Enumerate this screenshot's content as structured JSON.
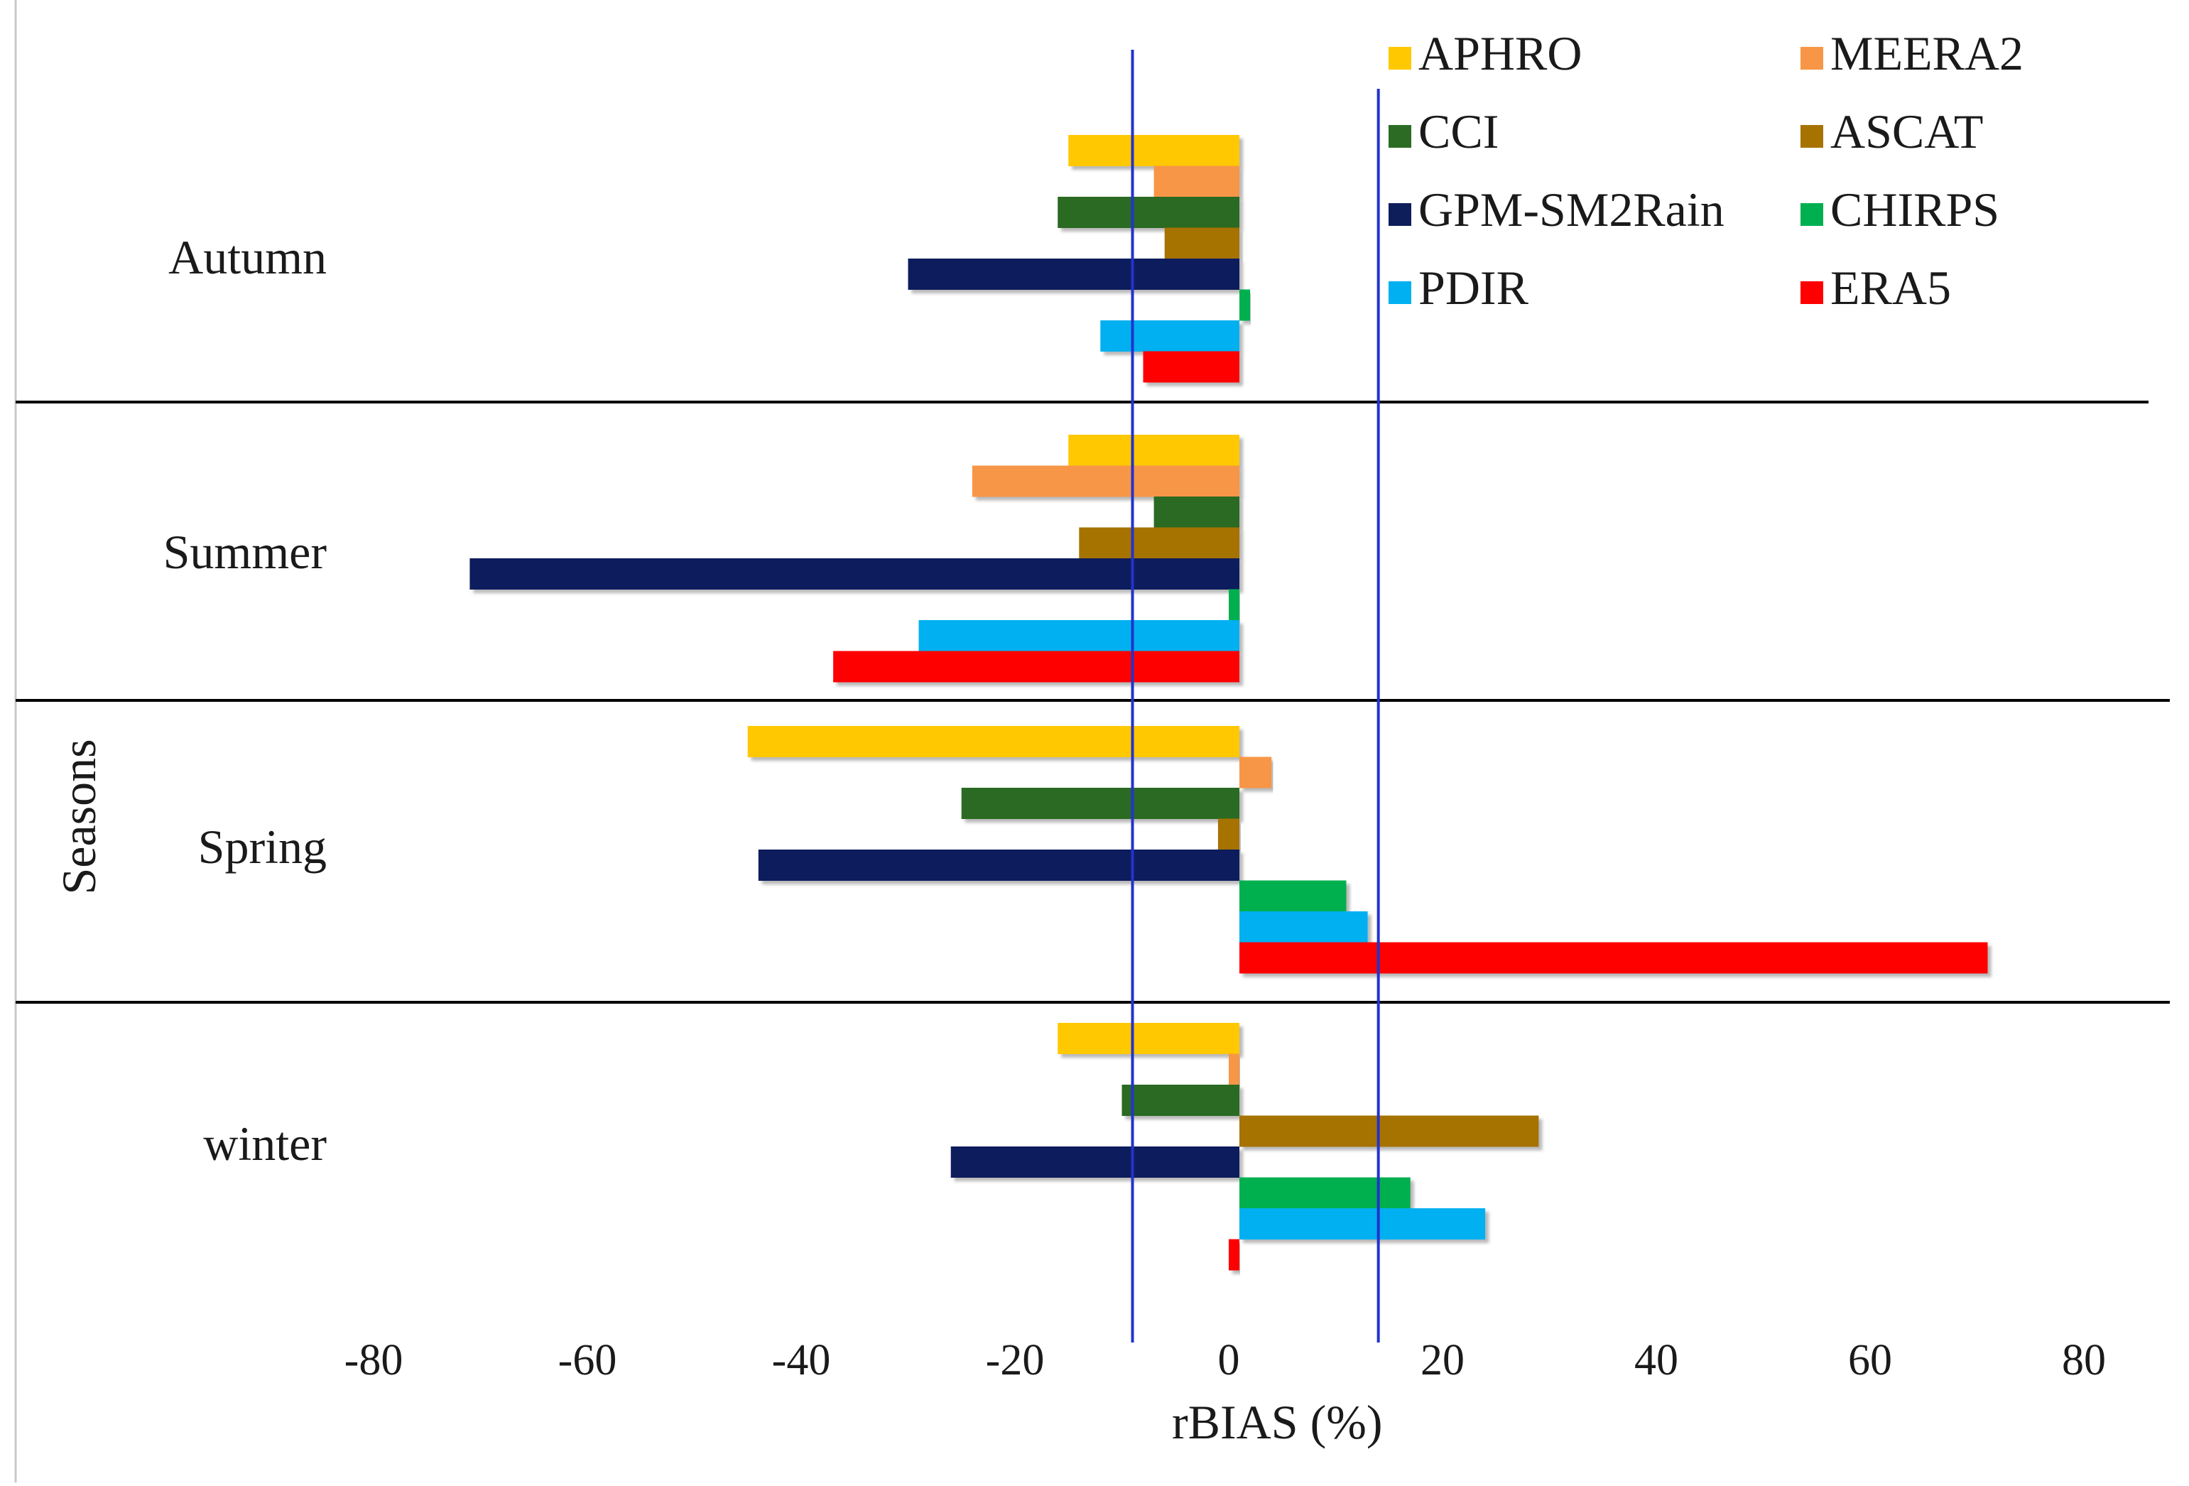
{
  "chart_data": {
    "type": "bar",
    "orientation": "horizontal",
    "title": "",
    "xlabel": "rBIAS (%)",
    "ylabel": "Seasons",
    "xlim": [
      -80,
      80
    ],
    "xticks": [
      "-80",
      "-60",
      "-40",
      "-20",
      "0",
      "20",
      "40",
      "60",
      "80"
    ],
    "categories": [
      "Autumn",
      "Summer",
      "Spring",
      "winter"
    ],
    "reference_lines": [
      -10,
      13
    ],
    "legend_position": "top-right",
    "series": [
      {
        "name": "APHRO",
        "color": "#FFC800",
        "values": [
          -16,
          -16,
          -46,
          -17
        ]
      },
      {
        "name": "MEERA2",
        "color": "#F79646",
        "values": [
          -8,
          -25,
          3,
          -1
        ]
      },
      {
        "name": "CCI",
        "color": "#2C6B24",
        "values": [
          -17,
          -8,
          -26,
          -11
        ]
      },
      {
        "name": "ASCAT",
        "color": "#A67200",
        "values": [
          -7,
          -15,
          -2,
          28
        ]
      },
      {
        "name": "GPM-SM2Rain",
        "color": "#0E1E5B",
        "values": [
          -31,
          -72,
          -45,
          -27
        ]
      },
      {
        "name": "CHIRPS",
        "color": "#00B050",
        "values": [
          1,
          -1,
          10,
          16
        ]
      },
      {
        "name": "PDIR",
        "color": "#00B0F0",
        "values": [
          -13,
          -30,
          12,
          23
        ]
      },
      {
        "name": "ERA5",
        "color": "#FF0000",
        "values": [
          -9,
          -38,
          70,
          -1
        ]
      }
    ]
  }
}
